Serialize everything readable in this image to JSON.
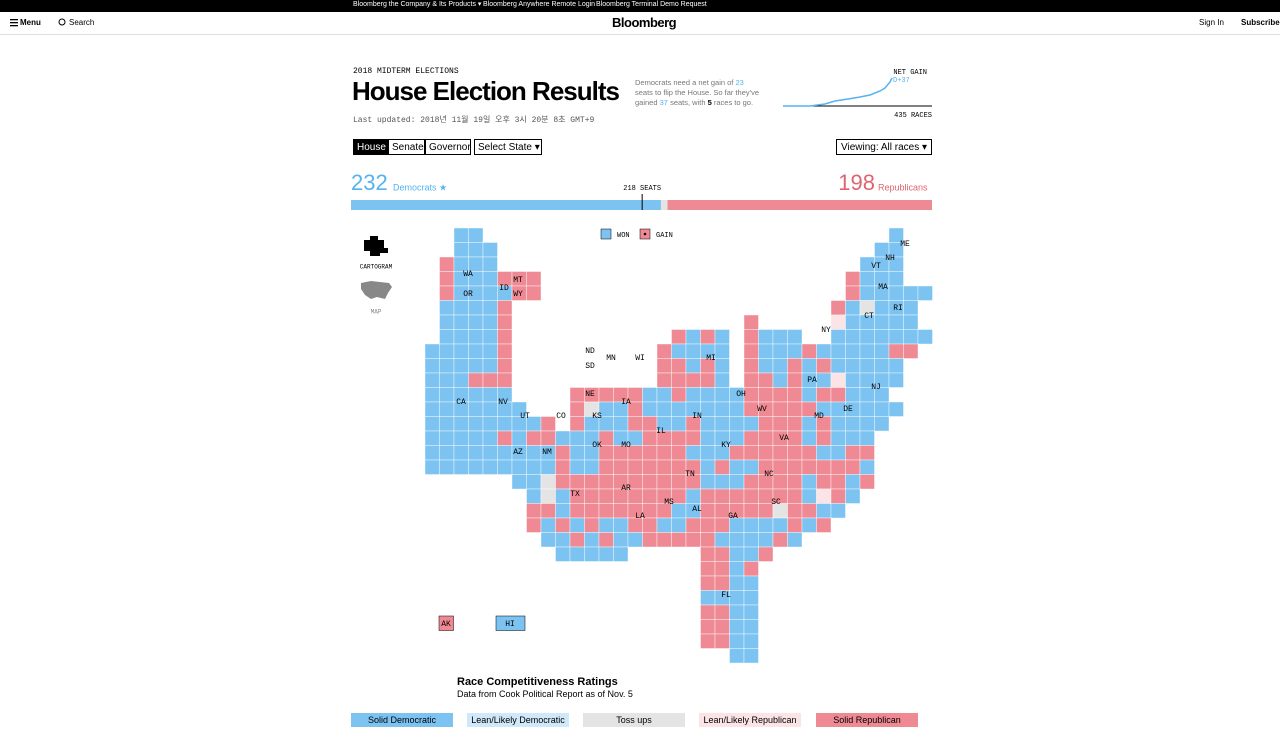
{
  "topbar": {
    "links": [
      "Bloomberg the Company & Its Products ▾",
      "Bloomberg Anywhere Remote Login",
      "Bloomberg Terminal Demo Request"
    ]
  },
  "nav": {
    "menu": "Menu",
    "search": "Search",
    "logo": "Bloomberg",
    "sign_in": "Sign In",
    "subscribe": "Subscribe"
  },
  "header": {
    "kicker": "2018 MIDTERM ELECTIONS",
    "title": "House Election Results",
    "updated": "Last updated: 2018년 11월 19일 오후 3시 20분 8초 GMT+9"
  },
  "summary": {
    "text_1": "Democrats need a net gain of",
    "needed": 23,
    "text_2": "seats to flip the House. So far they've gained",
    "gained": 37,
    "text_3": "seats, with",
    "remaining": 5,
    "text_4": "races to go."
  },
  "net_gain": {
    "label": "NET GAIN",
    "value_label": "D+37",
    "races": 435,
    "races_label": "RACES"
  },
  "tabs": [
    "House",
    "Senate",
    "Governor",
    "Select State ▾"
  ],
  "viewing": "Viewing: All races ▾",
  "seats": {
    "dem": 232,
    "dem_label": "Democrats ★",
    "rep": 198,
    "rep_label": "Republicans",
    "majority": 218,
    "majority_label": "SEATS"
  },
  "cartogram": {
    "won": "WON",
    "gain": "GAIN",
    "states": [
      "WA",
      "OR",
      "ID",
      "MT",
      "WY",
      "CA",
      "NV",
      "UT",
      "CO",
      "AZ",
      "NM",
      "TX",
      "ND",
      "SD",
      "NE",
      "KS",
      "OK",
      "MN",
      "IA",
      "MO",
      "AR",
      "LA",
      "WI",
      "IL",
      "MI",
      "IN",
      "KY",
      "TN",
      "MS",
      "AL",
      "GA",
      "FL",
      "SC",
      "NC",
      "VA",
      "WV",
      "OH",
      "PA",
      "NY",
      "NJ",
      "DE",
      "MD",
      "CT",
      "RI",
      "MA",
      "VT",
      "NH",
      "ME"
    ],
    "ak": "AK",
    "hi": "HI"
  },
  "views": [
    "CARTOGRAM",
    "MAP"
  ],
  "ratings": {
    "title": "Race Competitiveness Ratings",
    "source": "Data from Cook Political Report as of Nov. 5",
    "categories": [
      {
        "label": "Solid Democratic",
        "color": "#7cc3f2"
      },
      {
        "label": "Lean/Likely Democratic",
        "color": "#cfe9fa"
      },
      {
        "label": "Toss ups",
        "color": "#e4e4e4"
      },
      {
        "label": "Lean/Likely Republican",
        "color": "#fbe3e6"
      },
      {
        "label": "Solid Republican",
        "color": "#ef8a94"
      }
    ]
  }
}
